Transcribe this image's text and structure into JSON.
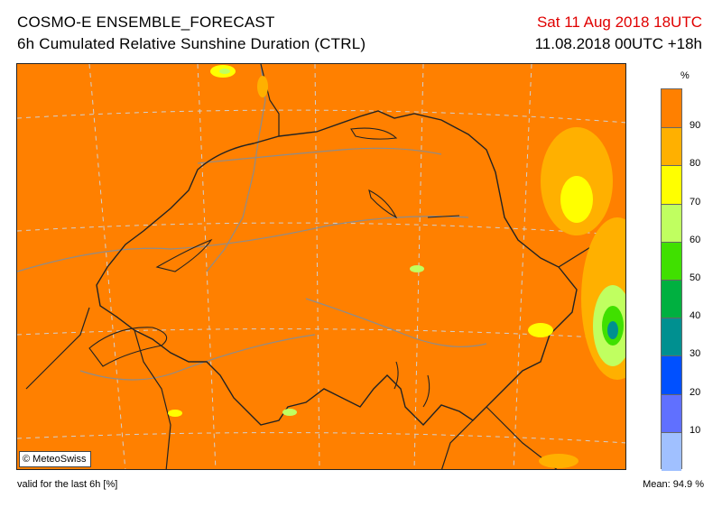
{
  "header": {
    "title": "COSMO-E ENSEMBLE_FORECAST",
    "subtitle": "6h Cumulated Relative Sunshine Duration (CTRL)",
    "valid_time": "Sat 11 Aug 2018 18UTC",
    "run_time": "11.08.2018 00UTC +18h"
  },
  "map": {
    "background_color": "#ff8000",
    "copyright": "© MeteoSwiss"
  },
  "legend": {
    "unit": "%",
    "ticks": [
      "90",
      "80",
      "70",
      "60",
      "50",
      "40",
      "30",
      "20",
      "10"
    ],
    "colors": [
      "#ff8000",
      "#ffb000",
      "#ffff00",
      "#c0ff60",
      "#40e000",
      "#00b040",
      "#009090",
      "#0050ff",
      "#6070ff",
      "#a0c0ff"
    ]
  },
  "footer": {
    "valid_note": "valid for the last 6h [%]",
    "mean_label": "Mean:",
    "mean_value": "94.9 %"
  }
}
